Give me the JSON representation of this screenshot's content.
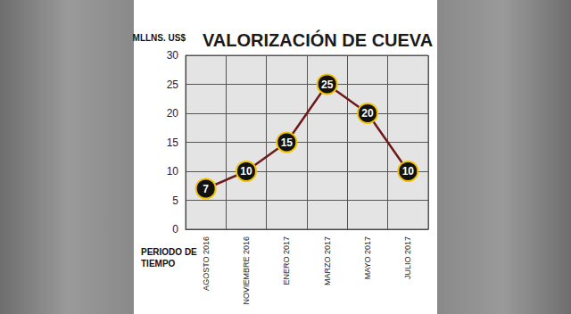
{
  "chart_data": {
    "type": "line",
    "title": "VALORIZACIÓN DE CUEVA",
    "y_label": "MLLNS. US$",
    "x_label": "PERIODO DE TIEMPO",
    "categories": [
      "AGOSTO 2016",
      "NOVIEMBRE 2016",
      "ENERO 2017",
      "MARZO 2017",
      "MAYO 2017",
      "JULIO 2017"
    ],
    "values": [
      7,
      10,
      15,
      25,
      20,
      10
    ],
    "color": "#6e1a1a",
    "ylim": [
      0,
      30
    ],
    "yticks": [
      0,
      5,
      10,
      15,
      20,
      25,
      30
    ],
    "grid": true,
    "data_labels": true,
    "marker": "circle"
  }
}
